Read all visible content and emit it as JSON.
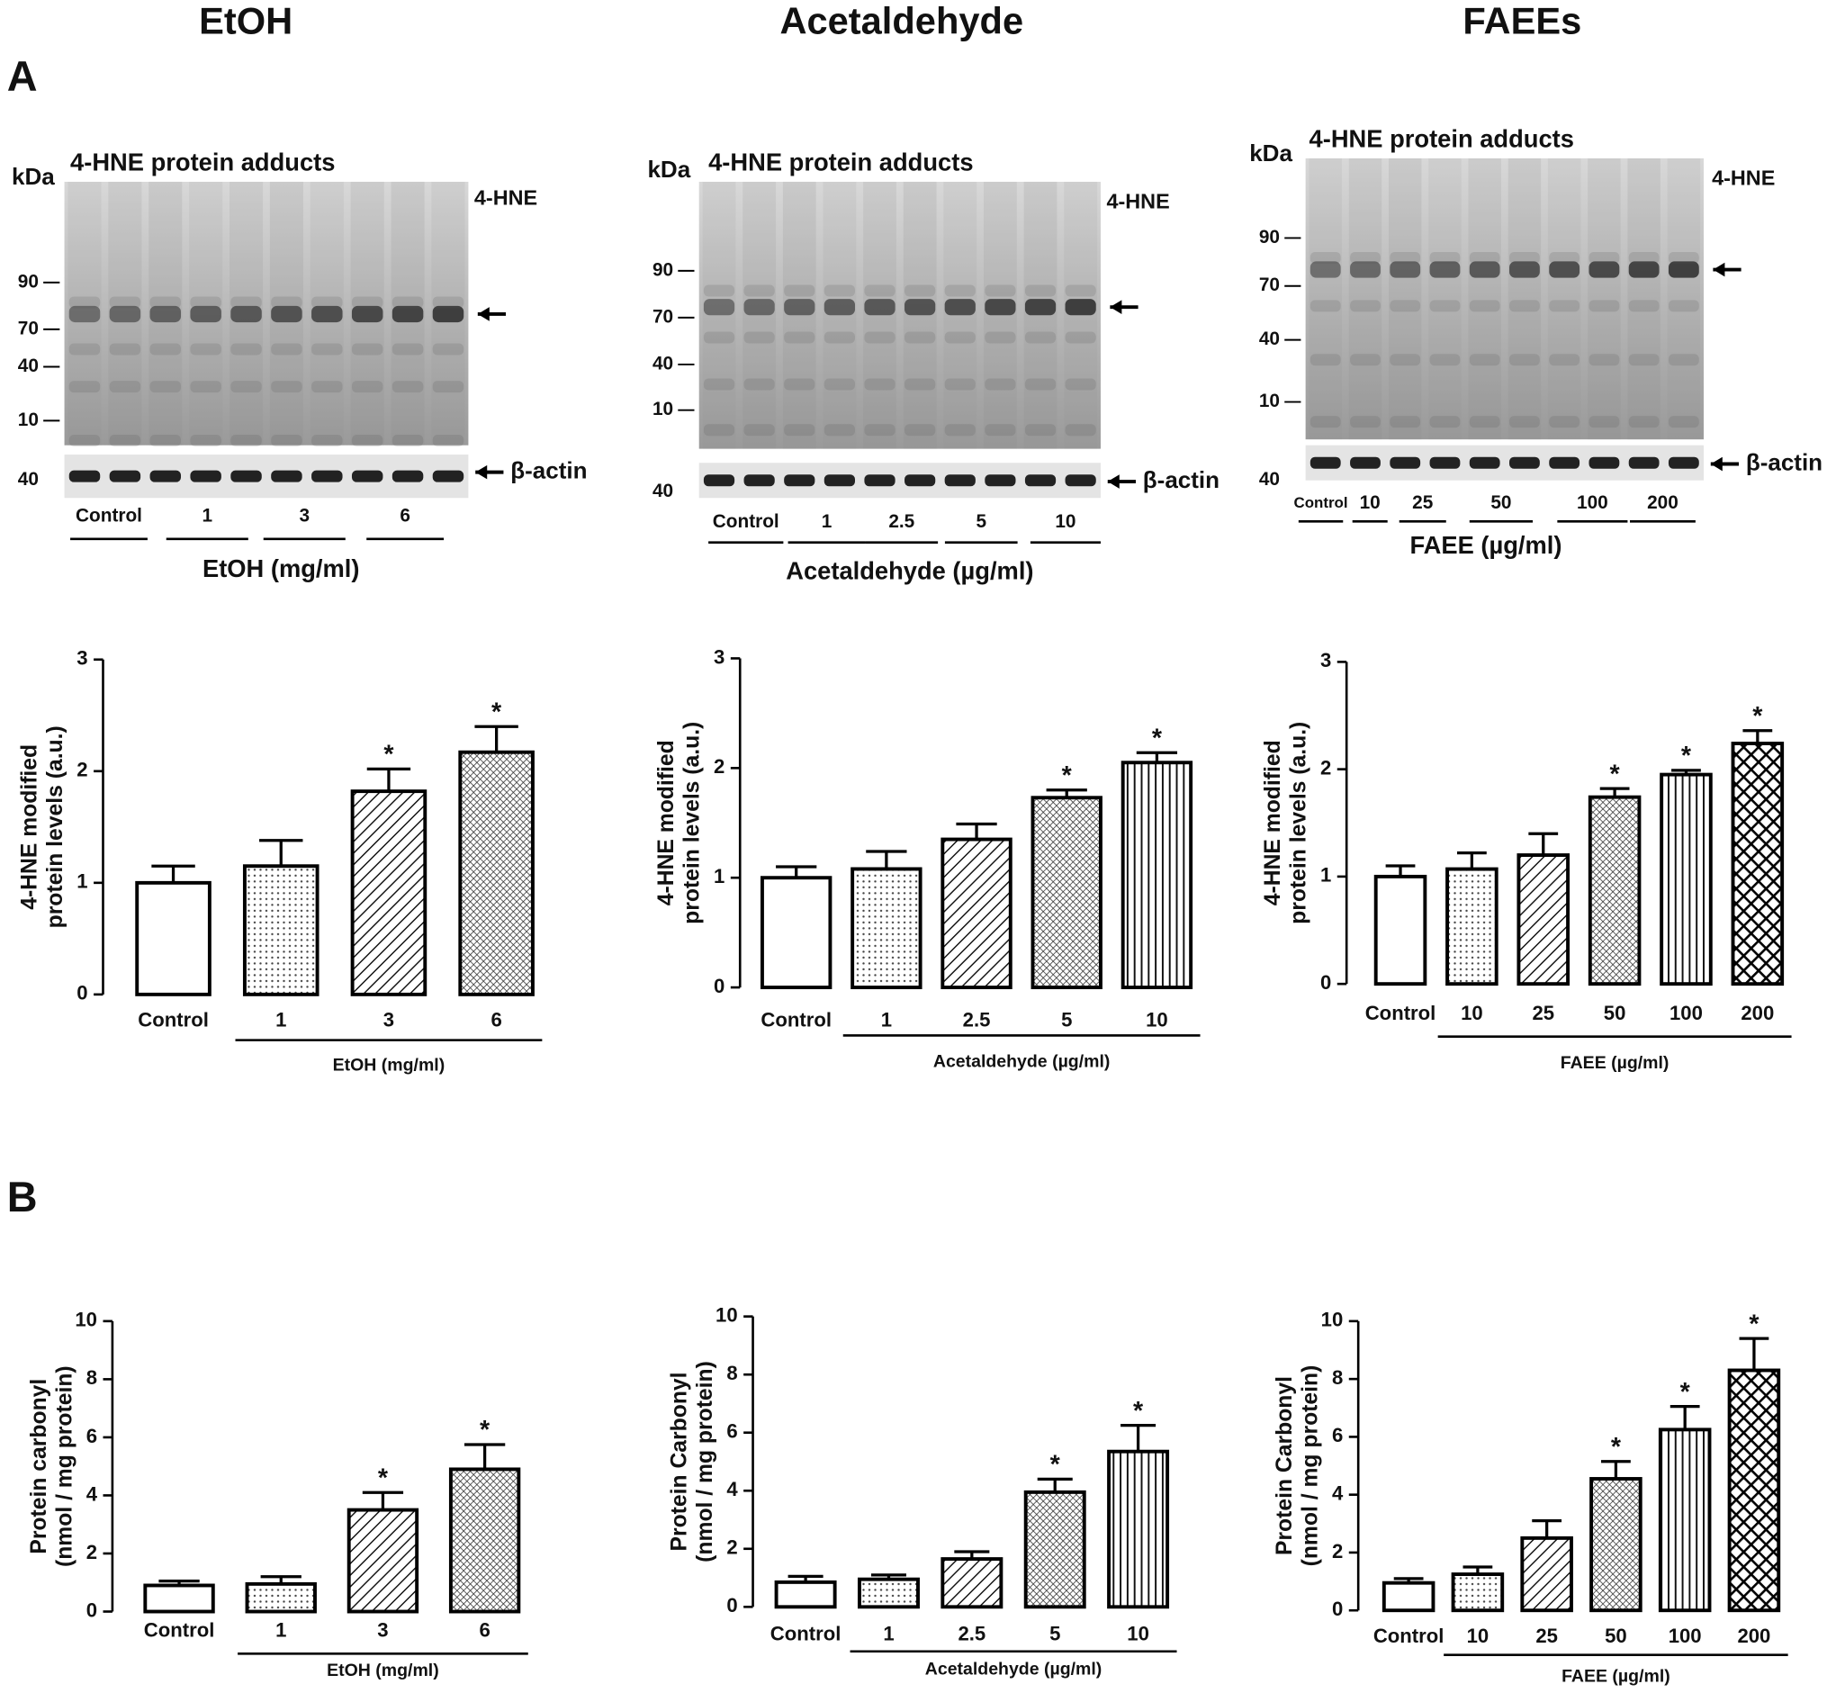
{
  "column_titles": [
    "EtOH",
    "Acetaldehyde",
    "FAEEs"
  ],
  "panel_labels": [
    "A",
    "B"
  ],
  "blots": [
    {
      "title": "4-HNE protein adducts",
      "unit_label": "kDa",
      "markers": [
        "90",
        "70",
        "40",
        "10"
      ],
      "actin_marker": "40",
      "target_label": "4-HNE",
      "actin_label": "β-actin",
      "groups": [
        "Control",
        "1",
        "3",
        "6"
      ],
      "xlabel": "EtOH (mg/ml)"
    },
    {
      "title": "4-HNE protein adducts",
      "unit_label": "kDa",
      "markers": [
        "90",
        "70",
        "40",
        "10"
      ],
      "actin_marker": "40",
      "target_label": "4-HNE",
      "actin_label": "β-actin",
      "groups": [
        "Control",
        "1",
        "2.5",
        "5",
        "10"
      ],
      "xlabel": "Acetaldehyde  (µg/ml)"
    },
    {
      "title": "4-HNE protein adducts",
      "unit_label": "kDa",
      "markers": [
        "90",
        "70",
        "40",
        "10"
      ],
      "actin_marker": "40",
      "target_label": "4-HNE",
      "actin_label": "β-actin",
      "groups": [
        "Control",
        "10",
        "25",
        "50",
        "100",
        "200"
      ],
      "xlabel": "FAEE (µg/ml)"
    }
  ],
  "chart_data": [
    {
      "type": "bar",
      "ylabel": [
        "4-HNE modified",
        "protein levels (a.u.)"
      ],
      "xlabel": "EtOH (mg/ml)",
      "categories": [
        "Control",
        "1",
        "3",
        "6"
      ],
      "values": [
        1.0,
        1.15,
        1.82,
        2.17
      ],
      "errors": [
        0.15,
        0.23,
        0.2,
        0.23
      ],
      "patterns": [
        "none",
        "dots",
        "hatch",
        "crosshatch"
      ],
      "annotations": [
        {
          "category": "3",
          "text": "*"
        },
        {
          "category": "6",
          "text": "*"
        }
      ],
      "ylim": [
        0,
        3
      ],
      "yticks": [
        0,
        1,
        2,
        3
      ]
    },
    {
      "type": "bar",
      "ylabel": [
        "4-HNE modified",
        "protein levels (a.u.)"
      ],
      "xlabel": "Acetaldehyde (µg/ml)",
      "categories": [
        "Control",
        "1",
        "2.5",
        "5",
        "10"
      ],
      "values": [
        1.0,
        1.08,
        1.35,
        1.73,
        2.05
      ],
      "errors": [
        0.1,
        0.16,
        0.14,
        0.07,
        0.09
      ],
      "patterns": [
        "none",
        "dots",
        "hatch",
        "crosshatch",
        "vlines"
      ],
      "annotations": [
        {
          "category": "5",
          "text": "*"
        },
        {
          "category": "10",
          "text": "*"
        }
      ],
      "ylim": [
        0,
        3
      ],
      "yticks": [
        0,
        1,
        2,
        3
      ]
    },
    {
      "type": "bar",
      "ylabel": [
        "4-HNE modified",
        "protein levels (a.u.)"
      ],
      "xlabel": "FAEE (µg/ml)",
      "categories": [
        "Control",
        "10",
        "25",
        "50",
        "100",
        "200"
      ],
      "values": [
        1.0,
        1.07,
        1.2,
        1.74,
        1.95,
        2.24
      ],
      "errors": [
        0.1,
        0.15,
        0.2,
        0.08,
        0.04,
        0.12
      ],
      "patterns": [
        "none",
        "dots",
        "hatch",
        "crosshatch",
        "vlines",
        "checker"
      ],
      "annotations": [
        {
          "category": "50",
          "text": "*"
        },
        {
          "category": "100",
          "text": "*"
        },
        {
          "category": "200",
          "text": "*"
        }
      ],
      "ylim": [
        0,
        3
      ],
      "yticks": [
        0,
        1,
        2,
        3
      ]
    },
    {
      "type": "bar",
      "ylabel": [
        "Protein carbonyl",
        "(nmol / mg protein)"
      ],
      "xlabel": "EtOH (mg/ml)",
      "categories": [
        "Control",
        "1",
        "3",
        "6"
      ],
      "values": [
        0.9,
        0.95,
        3.5,
        4.9
      ],
      "errors": [
        0.15,
        0.25,
        0.6,
        0.85
      ],
      "patterns": [
        "none",
        "dots",
        "hatch",
        "crosshatch"
      ],
      "annotations": [
        {
          "category": "3",
          "text": "*"
        },
        {
          "category": "6",
          "text": "*"
        }
      ],
      "ylim": [
        0,
        10
      ],
      "yticks": [
        0,
        2,
        4,
        6,
        8,
        10
      ]
    },
    {
      "type": "bar",
      "ylabel": [
        "Protein Carbonyl",
        "(nmol / mg protein)"
      ],
      "xlabel": "Acetaldehyde (µg/ml)",
      "categories": [
        "Control",
        "1",
        "2.5",
        "5",
        "10"
      ],
      "values": [
        0.85,
        0.95,
        1.65,
        3.95,
        5.35
      ],
      "errors": [
        0.2,
        0.15,
        0.25,
        0.45,
        0.9
      ],
      "patterns": [
        "none",
        "dots",
        "hatch",
        "crosshatch",
        "vlines"
      ],
      "annotations": [
        {
          "category": "5",
          "text": "*"
        },
        {
          "category": "10",
          "text": "*"
        }
      ],
      "ylim": [
        0,
        10
      ],
      "yticks": [
        0,
        2,
        4,
        6,
        8,
        10
      ]
    },
    {
      "type": "bar",
      "ylabel": [
        "Protein  Carbonyl",
        "(nmol / mg protein)"
      ],
      "xlabel": "FAEE (µg/ml)",
      "categories": [
        "Control",
        "10",
        "25",
        "50",
        "100",
        "200"
      ],
      "values": [
        0.95,
        1.25,
        2.5,
        4.55,
        6.25,
        8.3
      ],
      "errors": [
        0.15,
        0.25,
        0.6,
        0.6,
        0.8,
        1.1
      ],
      "patterns": [
        "none",
        "dots",
        "hatch",
        "crosshatch",
        "vlines",
        "checker"
      ],
      "annotations": [
        {
          "category": "50",
          "text": "*"
        },
        {
          "category": "100",
          "text": "*"
        },
        {
          "category": "200",
          "text": "*"
        }
      ],
      "ylim": [
        0,
        10
      ],
      "yticks": [
        0,
        2,
        4,
        6,
        8,
        10
      ]
    }
  ]
}
